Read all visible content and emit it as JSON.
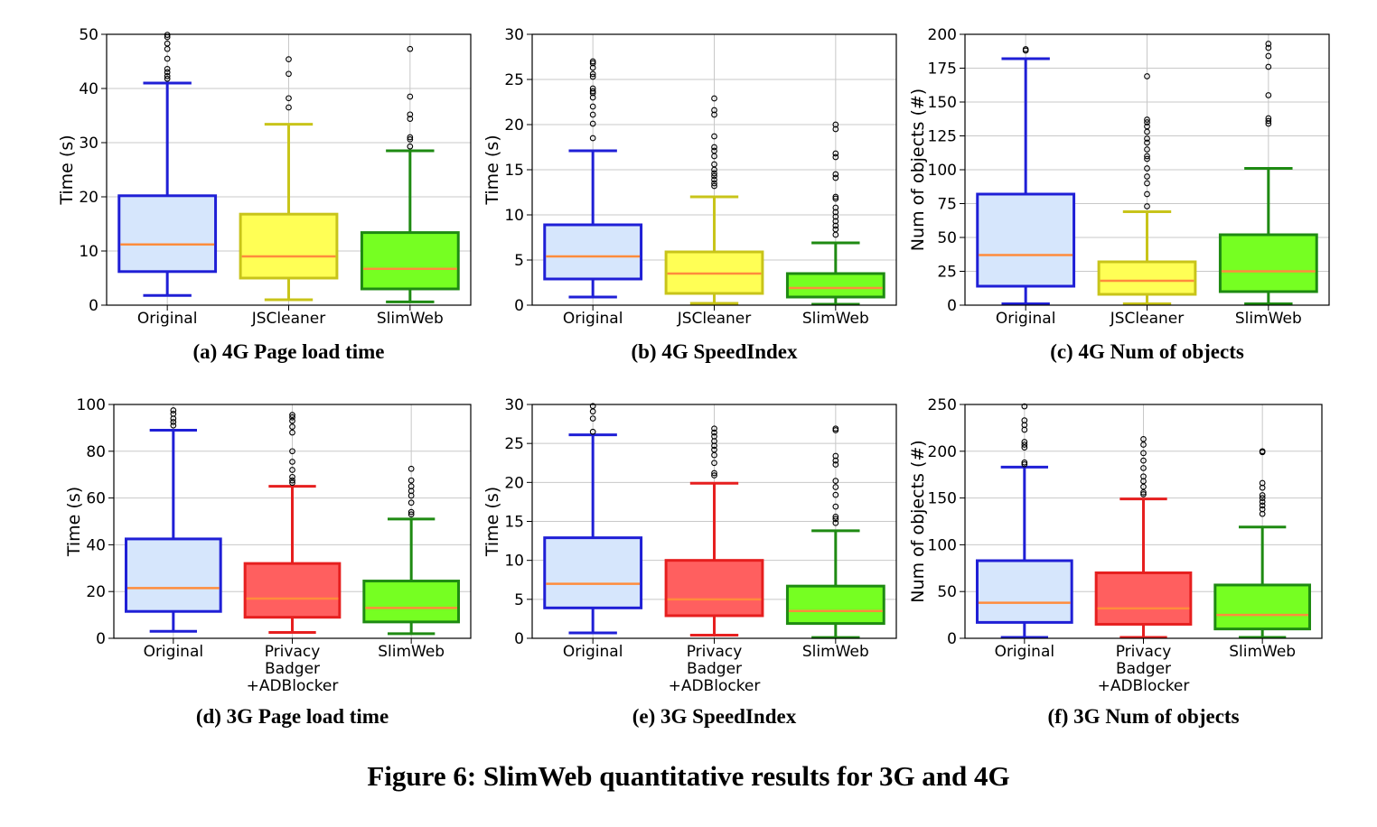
{
  "figure_caption": "Figure 6: SlimWeb quantitative results for 3G and 4G",
  "colors": {
    "blue": "#1f1fd6",
    "blue_fill": "#d6e6fc",
    "yellow": "#c8c41a",
    "yellow_fill": "#ffff55",
    "red": "#e61f1f",
    "red_fill": "#ff5f5f",
    "green": "#1e8a12",
    "green_fill": "#76ff22",
    "median": "#ff8c3c",
    "grid": "#c8c8c8"
  },
  "chart_data": [
    {
      "type": "box",
      "id": "a",
      "caption": "(a) 4G Page load time",
      "ylabel": "Time (s)",
      "ylim": [
        0,
        50
      ],
      "yticks": [
        "0",
        "10",
        "20",
        "30",
        "40",
        "50"
      ],
      "grid": true,
      "categories": [
        [
          "Original"
        ],
        [
          "JSCleaner"
        ],
        [
          "SlimWeb"
        ]
      ],
      "boxes": [
        {
          "name": "Original",
          "color": "blue",
          "whisker_low": 1.8,
          "q1": 6.2,
          "median": 11.2,
          "q3": 20.2,
          "whisker_high": 41.0,
          "outliers": [
            41.8,
            42.3,
            43.0,
            43.6,
            45.5,
            47.3,
            48.3,
            49.5,
            49.9
          ]
        },
        {
          "name": "JSCleaner",
          "color": "yellow",
          "whisker_low": 1.0,
          "q1": 5.0,
          "median": 9.0,
          "q3": 16.8,
          "whisker_high": 33.4,
          "outliers": [
            36.5,
            38.2,
            42.7,
            45.4
          ]
        },
        {
          "name": "SlimWeb",
          "color": "green",
          "whisker_low": 0.6,
          "q1": 3.0,
          "median": 6.7,
          "q3": 13.4,
          "whisker_high": 28.5,
          "outliers": [
            29.3,
            30.6,
            31.0,
            34.4,
            35.2,
            38.5,
            47.3
          ]
        }
      ]
    },
    {
      "type": "box",
      "id": "b",
      "caption": "(b) 4G SpeedIndex",
      "ylabel": "Time (s)",
      "ylim": [
        0,
        30
      ],
      "yticks": [
        "0",
        "5",
        "10",
        "15",
        "20",
        "25",
        "30"
      ],
      "grid": true,
      "categories": [
        [
          "Original"
        ],
        [
          "JSCleaner"
        ],
        [
          "SlimWeb"
        ]
      ],
      "boxes": [
        {
          "name": "Original",
          "color": "blue",
          "whisker_low": 0.9,
          "q1": 2.9,
          "median": 5.4,
          "q3": 8.9,
          "whisker_high": 17.1,
          "outliers": [
            18.5,
            20.1,
            21.1,
            22.0,
            23.0,
            23.5,
            23.7,
            24.0,
            25.3,
            25.6,
            26.3,
            26.8,
            27.0
          ]
        },
        {
          "name": "JSCleaner",
          "color": "yellow",
          "whisker_low": 0.2,
          "q1": 1.3,
          "median": 3.5,
          "q3": 5.9,
          "whisker_high": 12.0,
          "outliers": [
            13.2,
            13.5,
            13.9,
            14.3,
            14.6,
            15.0,
            15.6,
            16.5,
            17.1,
            17.5,
            18.7,
            21.1,
            21.6,
            22.9
          ]
        },
        {
          "name": "SlimWeb",
          "color": "green",
          "whisker_low": 0.1,
          "q1": 0.9,
          "median": 1.9,
          "q3": 3.5,
          "whisker_high": 6.9,
          "outliers": [
            7.8,
            8.4,
            8.8,
            9.3,
            9.8,
            10.3,
            10.8,
            11.8,
            12.0,
            14.1,
            14.5,
            16.4,
            16.8,
            19.5,
            20.0
          ]
        }
      ]
    },
    {
      "type": "box",
      "id": "c",
      "caption": "(c) 4G Num of objects",
      "ylabel": "Num of objects (#)",
      "ylim": [
        0,
        200
      ],
      "yticks": [
        "0",
        "25",
        "50",
        "75",
        "100",
        "125",
        "150",
        "175",
        "200"
      ],
      "grid": true,
      "categories": [
        [
          "Original"
        ],
        [
          "JSCleaner"
        ],
        [
          "SlimWeb"
        ]
      ],
      "boxes": [
        {
          "name": "Original",
          "color": "blue",
          "whisker_low": 1,
          "q1": 14,
          "median": 37,
          "q3": 82,
          "whisker_high": 182,
          "outliers": [
            188,
            189
          ]
        },
        {
          "name": "JSCleaner",
          "color": "yellow",
          "whisker_low": 1,
          "q1": 8,
          "median": 18,
          "q3": 32,
          "whisker_high": 69,
          "outliers": [
            73,
            82,
            90,
            95,
            101,
            108,
            110,
            115,
            120,
            123,
            128,
            132,
            135,
            137,
            169
          ]
        },
        {
          "name": "SlimWeb",
          "color": "green",
          "whisker_low": 1,
          "q1": 10,
          "median": 25,
          "q3": 52,
          "whisker_high": 101,
          "outliers": [
            134,
            136,
            138,
            155,
            176,
            184,
            190,
            193
          ]
        }
      ]
    },
    {
      "type": "box",
      "id": "d",
      "caption": "(d) 3G Page load time",
      "ylabel": "Time (s)",
      "ylim": [
        0,
        100
      ],
      "yticks": [
        "0",
        "20",
        "40",
        "60",
        "80",
        "100"
      ],
      "grid": true,
      "categories": [
        [
          "Original"
        ],
        [
          "Privacy",
          "Badger",
          "+ADBlocker"
        ],
        [
          "SlimWeb"
        ]
      ],
      "boxes": [
        {
          "name": "Original",
          "color": "blue",
          "whisker_low": 3,
          "q1": 11.5,
          "median": 21.5,
          "q3": 42.5,
          "whisker_high": 89,
          "outliers": [
            91,
            92.5,
            94,
            96,
            97.5
          ]
        },
        {
          "name": "Privacy Badger +ADBlocker",
          "color": "red",
          "whisker_low": 2.5,
          "q1": 9,
          "median": 17,
          "q3": 32,
          "whisker_high": 65,
          "outliers": [
            66.5,
            67.5,
            69,
            72,
            75.5,
            80,
            88,
            90.5,
            93,
            94.5,
            95.5
          ]
        },
        {
          "name": "SlimWeb",
          "color": "green",
          "whisker_low": 2,
          "q1": 7,
          "median": 13,
          "q3": 24.5,
          "whisker_high": 51,
          "outliers": [
            53,
            54,
            58,
            61,
            63,
            65,
            67.5,
            72.5
          ]
        }
      ]
    },
    {
      "type": "box",
      "id": "e",
      "caption": "(e) 3G SpeedIndex",
      "ylabel": "Time (s)",
      "ylim": [
        0,
        30
      ],
      "yticks": [
        "0",
        "5",
        "10",
        "15",
        "20",
        "25",
        "30"
      ],
      "grid": true,
      "categories": [
        [
          "Original"
        ],
        [
          "Privacy",
          "Badger",
          "+ADBlocker"
        ],
        [
          "SlimWeb"
        ]
      ],
      "boxes": [
        {
          "name": "Original",
          "color": "blue",
          "whisker_low": 0.7,
          "q1": 3.9,
          "median": 7.0,
          "q3": 12.9,
          "whisker_high": 26.1,
          "outliers": [
            26.5,
            28.2,
            29.1,
            29.8
          ]
        },
        {
          "name": "Privacy Badger +ADBlocker",
          "color": "red",
          "whisker_low": 0.4,
          "q1": 2.9,
          "median": 5.0,
          "q3": 10.0,
          "whisker_high": 19.9,
          "outliers": [
            20.9,
            21.2,
            22.5,
            23.5,
            24.2,
            24.7,
            25.3,
            25.9,
            26.4,
            26.9
          ]
        },
        {
          "name": "SlimWeb",
          "color": "green",
          "whisker_low": 0.1,
          "q1": 1.9,
          "median": 3.5,
          "q3": 6.7,
          "whisker_high": 13.8,
          "outliers": [
            14.8,
            15.3,
            15.6,
            16.9,
            18.4,
            19.4,
            20.2,
            22.3,
            22.8,
            23.4,
            26.7,
            26.9
          ]
        }
      ]
    },
    {
      "type": "box",
      "id": "f",
      "caption": "(f) 3G Num of objects",
      "ylabel": "Num of objects (#)",
      "ylim": [
        0,
        250
      ],
      "yticks": [
        "0",
        "50",
        "100",
        "150",
        "200",
        "250"
      ],
      "grid": true,
      "categories": [
        [
          "Original"
        ],
        [
          "Privacy",
          "Badger",
          "+ADBlocker"
        ],
        [
          "SlimWeb"
        ]
      ],
      "boxes": [
        {
          "name": "Original",
          "color": "blue",
          "whisker_low": 1,
          "q1": 17,
          "median": 38,
          "q3": 83,
          "whisker_high": 183,
          "outliers": [
            186,
            188,
            204,
            207,
            210,
            223,
            228,
            233,
            248
          ]
        },
        {
          "name": "Privacy Badger +ADBlocker",
          "color": "red",
          "whisker_low": 1,
          "q1": 15,
          "median": 32,
          "q3": 70,
          "whisker_high": 149,
          "outliers": [
            154,
            156,
            162,
            168,
            173,
            182,
            190,
            198,
            207,
            213
          ]
        },
        {
          "name": "SlimWeb",
          "color": "green",
          "whisker_low": 1,
          "q1": 10,
          "median": 25,
          "q3": 57,
          "whisker_high": 119,
          "outliers": [
            133,
            138,
            142,
            146,
            150,
            153,
            161,
            166,
            199,
            200
          ]
        }
      ]
    }
  ]
}
